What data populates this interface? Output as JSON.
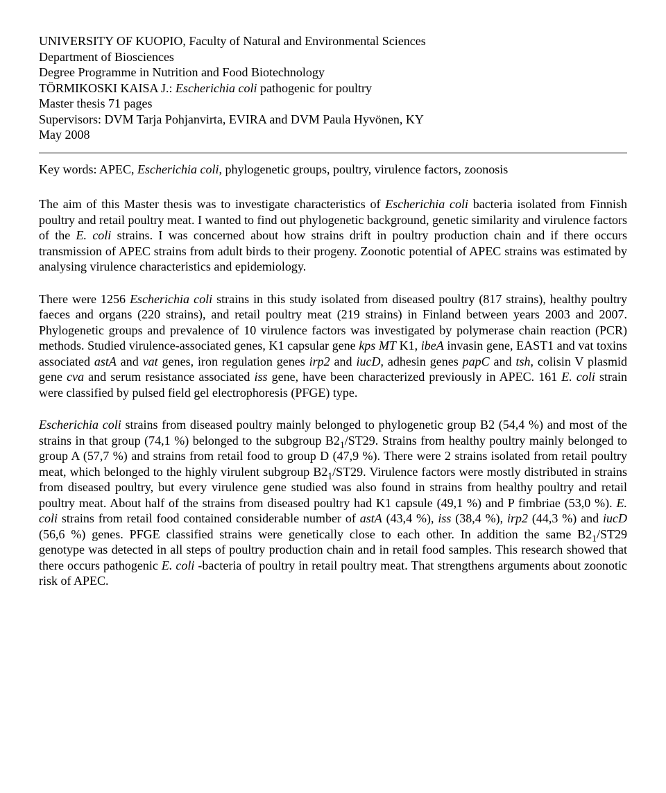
{
  "header": {
    "line1": "UNIVERSITY OF KUOPIO, Faculty of Natural and Environmental Sciences",
    "line2": "Department of Biosciences",
    "line3": "Degree Programme in Nutrition and Food Biotechnology",
    "author_pre": "TÖRMIKOSKI KAISA J.: ",
    "title_italic": "Escherichia coli",
    "title_post": " pathogenic for poultry",
    "thesis": "Master thesis 71 pages",
    "supervisors": "Supervisors: DVM Tarja Pohjanvirta, EVIRA and DVM Paula Hyvönen, KY",
    "date": "May 2008"
  },
  "keywords": {
    "pre": "Key words: APEC, ",
    "italic": "Escherichia coli",
    "post": ", phylogenetic groups, poultry, virulence factors, zoonosis"
  },
  "para1": {
    "t1": "The aim of this Master thesis was to investigate characteristics of ",
    "i1": "Escherichia coli",
    "t2": " bacteria isolated from Finnish poultry and retail poultry meat. I wanted to find out phylogenetic background, genetic similarity and virulence factors of the ",
    "i2": "E. coli",
    "t3": " strains. I was concerned about how strains drift in poultry production chain and if there occurs transmission of APEC strains from adult birds to their progeny. Zoonotic potential of APEC strains was estimated by analysing virulence characteristics and epidemiology."
  },
  "para2": {
    "t1": "There were 1256 ",
    "i1": "Escherichia coli",
    "t2": " strains in this study isolated from diseased poultry (817 strains), healthy poultry faeces and organs (220 strains), and retail poultry meat (219 strains) in Finland between years 2003 and 2007. Phylogenetic groups and prevalence of 10 virulence factors was investigated by polymerase chain reaction (PCR) methods. Studied virulence-associated genes, K1 capsular gene ",
    "i2": "kps MT",
    "t3": " K1, ",
    "i3": "ibeA",
    "t4": " invasin gene, EAST1 and vat toxins associated ",
    "i4": "astA",
    "t5": " and ",
    "i5": "vat",
    "t6": " genes, iron regulation genes ",
    "i6": "irp2",
    "t7": " and ",
    "i7": "iucD",
    "t8": ", adhesin genes ",
    "i8": "papC",
    "t9": " and ",
    "i9": "tsh",
    "t10": ", colisin V plasmid gene ",
    "i10": "cva",
    "t11": " and serum resistance associated ",
    "i11": "iss",
    "t12": " gene, have been characterized previously in APEC. 161 ",
    "i12": "E. coli",
    "t13": " strain were classified by pulsed field gel electrophoresis (PFGE) type."
  },
  "para3": {
    "i1": "Escherichia coli",
    "t1": " strains from diseased poultry mainly belonged to phylogenetic group B2 (54,4 %) and most of the strains in that group (74,1 %) belonged to the subgroup B2",
    "sub1": "1",
    "t2": "/ST29. Strains from healthy poultry mainly belonged to group A (57,7 %) and strains from retail food to group D (47,9 %). There were 2 strains isolated from retail poultry meat, which belonged to the highly virulent subgroup B2",
    "sub2": "1",
    "t3": "/ST29. Virulence factors were mostly distributed in strains from diseased poultry, but every virulence gene studied was also found in strains from healthy poultry and retail poultry meat. About half of the strains from diseased poultry had K1 capsule (49,1 %) and P fimbriae (53,0 %). ",
    "i2": "E. coli",
    "t4": " strains from retail food contained considerable number of ",
    "i3": "astA",
    "t5": " (43,4 %), ",
    "i4": "iss",
    "t6": " (38,4 %), ",
    "i5": "irp2",
    "t7": " (44,3 %) and ",
    "i6": "iucD",
    "t8": " (56,6 %) genes. PFGE classified strains were genetically close to each other. In addition the same B2",
    "sub3": "1",
    "t9": "/ST29 genotype was detected in all steps of poultry production chain and in retail food samples. This research showed that there occurs pathogenic ",
    "i7": "E. coli",
    "t10": " -bacteria of poultry in retail poultry meat. That strengthens arguments about zoonotic risk of APEC."
  }
}
